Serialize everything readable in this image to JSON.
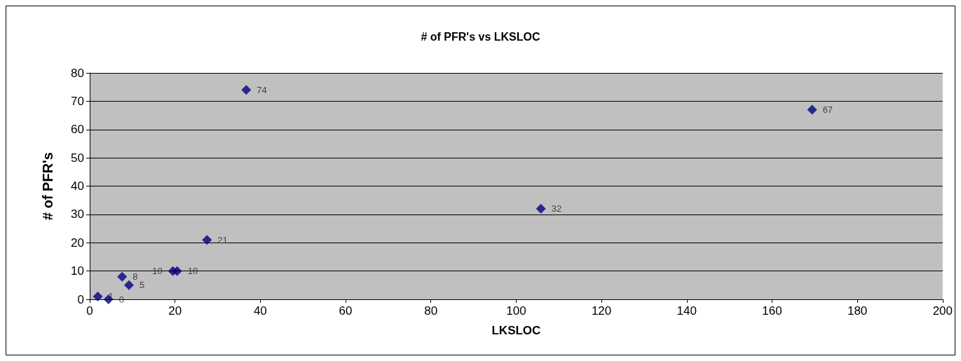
{
  "chart_data": {
    "type": "scatter",
    "title": "# of PFR's vs LKSLOC",
    "xlabel": "LKSLOC",
    "ylabel": "# of PFR's",
    "x": [
      1.9,
      4.4,
      7.6,
      9.2,
      19.5,
      20.5,
      27.5,
      36.7,
      105.8,
      169.4
    ],
    "values": [
      1,
      0,
      8,
      5,
      10,
      10,
      21,
      74,
      32,
      67
    ],
    "color": "#000080",
    "marker": "diamond",
    "data_labels": true,
    "grid": "y",
    "xlim": [
      0,
      200
    ],
    "xticks": [
      0,
      20,
      40,
      60,
      80,
      100,
      120,
      140,
      160,
      180,
      200
    ],
    "ylim": [
      0,
      80
    ],
    "yticks": [
      0,
      10,
      20,
      30,
      40,
      50,
      60,
      70,
      80
    ]
  }
}
